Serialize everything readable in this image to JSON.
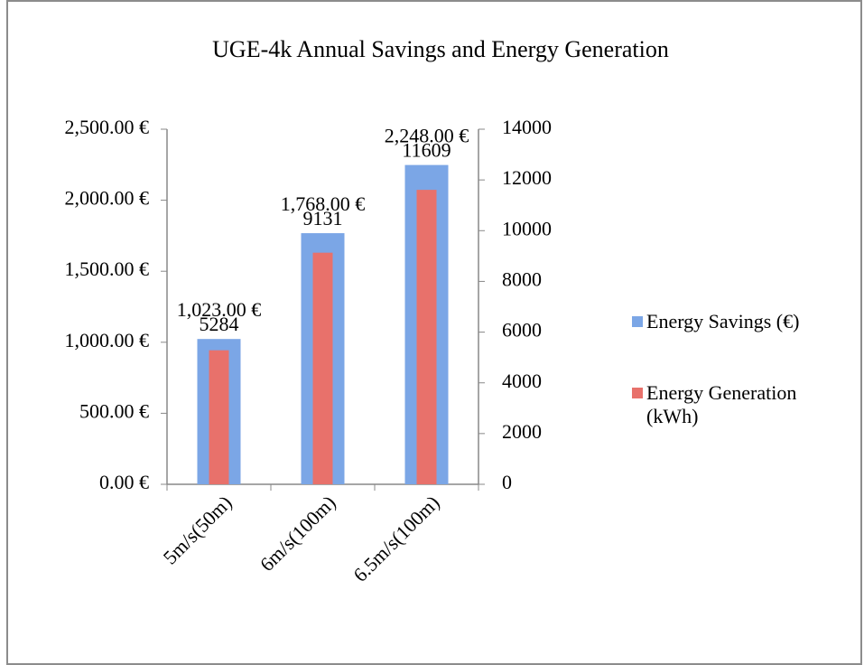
{
  "chart_data": {
    "type": "bar",
    "title": "UGE-4k Annual Savings and Energy Generation",
    "categories": [
      "5m/s(50m)",
      "6m/s(100m)",
      "6.5m/s(100m)"
    ],
    "series": [
      {
        "name": "Energy Savings (€)",
        "color": "#7ba6e6",
        "values": [
          1023,
          1768,
          2248
        ],
        "value_labels": [
          "1,023.00 €",
          "1,768.00 €",
          "2,248.00 €"
        ]
      },
      {
        "name": "Energy Generation (kWh)",
        "color": "#e8716b",
        "axis": "y2",
        "values": [
          5284,
          9131,
          11609
        ]
      }
    ],
    "ylim": [
      0,
      2500
    ],
    "yticks": [
      {
        "value": 0,
        "label": "0.00 €"
      },
      {
        "value": 500,
        "label": "500.00 €"
      },
      {
        "value": 1000,
        "label": "1,000.00 €"
      },
      {
        "value": 1500,
        "label": "1,500.00 €"
      },
      {
        "value": 2000,
        "label": "2,000.00 €"
      },
      {
        "value": 2500,
        "label": "2,500.00 €"
      }
    ],
    "y2lim": [
      0,
      14000
    ],
    "y2ticks": [
      0,
      2000,
      4000,
      6000,
      8000,
      10000,
      12000,
      14000
    ],
    "legend": "right"
  }
}
